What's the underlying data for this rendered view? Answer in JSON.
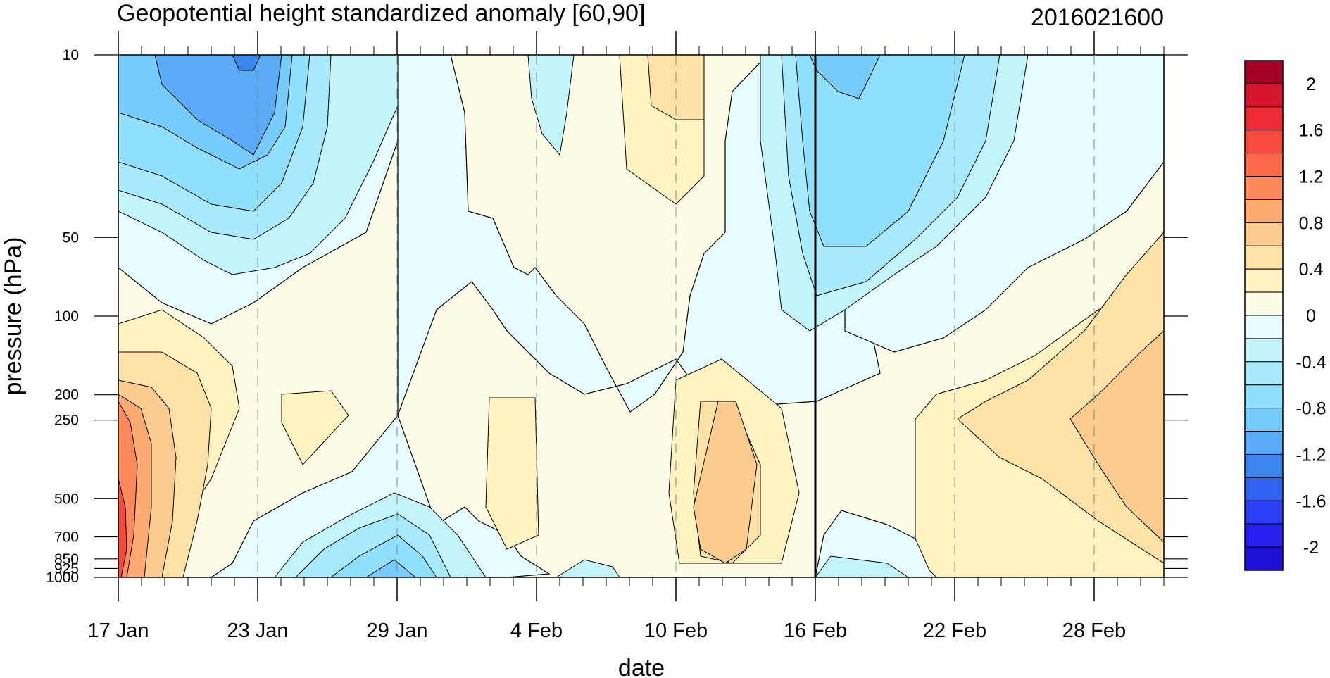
{
  "chart_data": {
    "type": "contour",
    "title": "Geopotential height standardized anomaly [60,90]",
    "subtitle": "2016021600",
    "xlabel": "date",
    "ylabel": "pressure (hPa)",
    "x_ticks": [
      "17 Jan",
      "23 Jan",
      "29 Jan",
      "4 Feb",
      "10 Feb",
      "16 Feb",
      "22 Feb",
      "28 Feb"
    ],
    "x_range": [
      "17 Jan",
      "2 Mar"
    ],
    "y_scale": "log",
    "y_ticks": [
      "10",
      "50",
      "100",
      "200",
      "250",
      "500",
      "700",
      "850",
      "925",
      "1000"
    ],
    "y_range": [
      10,
      1000
    ],
    "grid": "dashed vertical lines at date ticks",
    "marked_date": "16 Feb",
    "colorbar": {
      "labels": [
        "2",
        "1.6",
        "1.2",
        "0.8",
        "0.4",
        "0",
        "-0.4",
        "-0.8",
        "-1.2",
        "-1.6",
        "-2"
      ],
      "levels": [
        -2.2,
        -2.0,
        -1.8,
        -1.6,
        -1.4,
        -1.2,
        -1.0,
        -0.8,
        -0.6,
        -0.4,
        -0.2,
        0,
        0.2,
        0.4,
        0.6,
        0.8,
        1.0,
        1.2,
        1.4,
        1.6,
        1.8,
        2.0,
        2.2
      ],
      "colors": [
        "#1e0fd6",
        "#2621f0",
        "#2b40f7",
        "#3063f2",
        "#3b86ee",
        "#5aaaf5",
        "#76cdfb",
        "#90dffc",
        "#a8eafc",
        "#c3f4fc",
        "#e6fcfe",
        "#fefce6",
        "#fdf2c0",
        "#fce2a6",
        "#fbcb8e",
        "#fbab72",
        "#fc8a5c",
        "#fd6a4a",
        "#f94a3e",
        "#ec2b35",
        "#d6152f",
        "#a50026"
      ]
    },
    "anomaly_regions": [
      {
        "date_range": [
          "17 Jan",
          "22 Jan"
        ],
        "pressure_range": [
          10,
          80
        ],
        "value_min": -1.0,
        "sign": "negative"
      },
      {
        "date_range": [
          "17 Jan",
          "21 Jan"
        ],
        "pressure_range": [
          200,
          1000
        ],
        "value_max": 1.9,
        "sign": "positive"
      },
      {
        "date_range": [
          "25 Jan",
          "31 Jan"
        ],
        "pressure_range": [
          600,
          1000
        ],
        "value_min": -0.9,
        "sign": "negative"
      },
      {
        "date_range": [
          "8 Feb",
          "11 Feb"
        ],
        "pressure_range": [
          10,
          30
        ],
        "value_max": 0.7,
        "sign": "positive"
      },
      {
        "date_range": [
          "11 Feb",
          "14 Feb"
        ],
        "pressure_range": [
          250,
          900
        ],
        "value_max": 0.8,
        "sign": "positive"
      },
      {
        "date_range": [
          "16 Feb",
          "22 Feb"
        ],
        "pressure_range": [
          10,
          100
        ],
        "value_min": -0.9,
        "sign": "negative"
      },
      {
        "date_range": [
          "22 Feb",
          "2 Mar"
        ],
        "pressure_range": [
          150,
          800
        ],
        "value_max": 0.8,
        "sign": "positive"
      }
    ]
  }
}
